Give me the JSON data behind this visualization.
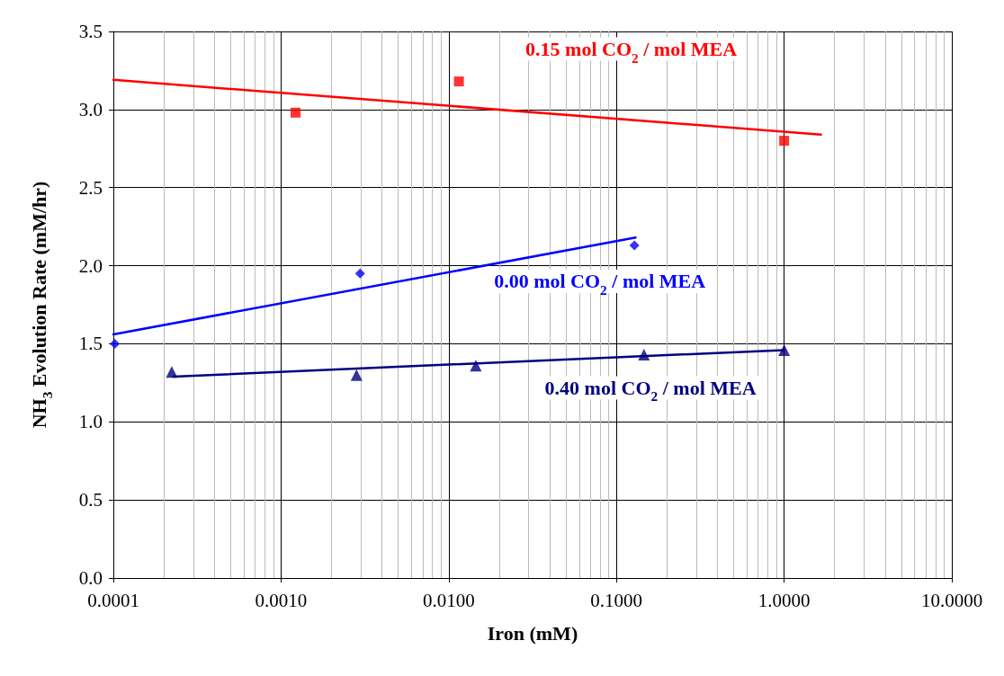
{
  "chart_data": {
    "type": "scatter",
    "xlabel": "Iron (mM)",
    "ylabel": "NH$_{3}$ Evolution Rate (mM/hr)",
    "log": "x",
    "grid": true,
    "legend": false,
    "xlim": [
      0.0001,
      10
    ],
    "xticks": [
      0.0001,
      {
        "value": 0.001,
        "label": "0.0010"
      },
      {
        "value": 0.01,
        "label": "0.0100"
      },
      {
        "value": 0.1,
        "label": "0.1000"
      },
      {
        "value": 1,
        "label": "1.0000"
      },
      {
        "value": 10,
        "label": "10.0000"
      }
    ],
    "ylim": [
      0,
      3.5
    ],
    "yticks": [
      {
        "value": 0,
        "label": "0.0"
      },
      0.5,
      {
        "value": 1,
        "label": "1.0"
      },
      1.5,
      {
        "value": 2,
        "label": "2.0"
      },
      2.5,
      {
        "value": 3,
        "label": "3.0"
      },
      3.5
    ],
    "series": [
      {
        "name": "0.15 mol CO$_{2}$ / mol MEA",
        "marker": "square",
        "color": "#ff0000",
        "x": [
          0.00122,
          0.0115,
          1.0
        ],
        "values": [
          2.98,
          3.18,
          2.8
        ]
      },
      {
        "type": "line",
        "marker": "none",
        "color": "#ff0000",
        "x": [
          0.0001,
          1.66
        ],
        "values": [
          3.19,
          2.84
        ]
      },
      {
        "name": "0.00 mol CO$_{2}$ / mol MEA",
        "marker": "diamond",
        "color": "#0000ff",
        "x": [
          0.000102,
          0.00296,
          0.128
        ],
        "values": [
          1.5,
          1.95,
          2.13
        ]
      },
      {
        "type": "line",
        "marker": "none",
        "color": "#0000ff",
        "x": [
          0.0001,
          0.13
        ],
        "values": [
          1.56,
          2.18
        ]
      },
      {
        "name": "0.40 mol CO$_{2}$ / mol MEA",
        "marker": "triangle",
        "color": "#000080",
        "x": [
          0.000223,
          0.00282,
          0.0145,
          0.146,
          1.0
        ],
        "values": [
          1.32,
          1.3,
          1.36,
          1.43,
          1.46
        ]
      },
      {
        "type": "line",
        "marker": "none",
        "color": "#000080",
        "x": [
          0.000228,
          1.0
        ],
        "values": [
          1.29,
          1.46
        ]
      }
    ]
  }
}
